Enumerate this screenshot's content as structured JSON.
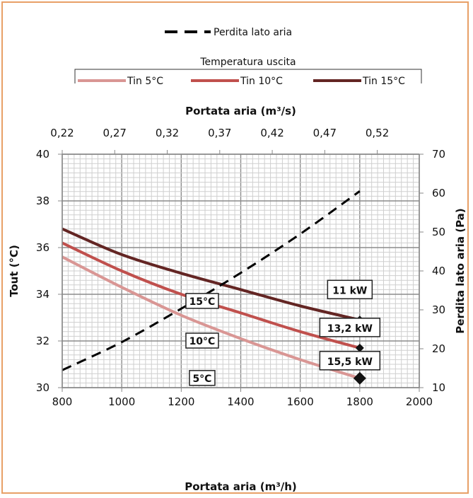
{
  "chart_data": {
    "type": "line",
    "xlabel": "Portata aria (m³/h)",
    "x2label": "Portata aria (m³/s)",
    "ylabel": "Tout (°C)",
    "y2label": "Perdita lato aria (Pa)",
    "xlim": [
      800,
      2000
    ],
    "x_ticks": [
      "800",
      "1000",
      "1200",
      "1400",
      "1600",
      "1800",
      "2000"
    ],
    "x2lim": [
      0.22,
      0.56
    ],
    "x2_ticks": [
      "0,22",
      "0,27",
      "0,32",
      "0,37",
      "0,42",
      "0,47",
      "0,52"
    ],
    "ylim": [
      30,
      40
    ],
    "y_ticks": [
      "30",
      "32",
      "34",
      "36",
      "38",
      "40"
    ],
    "y2lim": [
      10,
      70
    ],
    "y2_ticks": [
      "10",
      "20",
      "30",
      "40",
      "50",
      "60",
      "70"
    ],
    "grid": true,
    "legend_title": "Temperatura uscita",
    "series": [
      {
        "name": "Tin 5°C",
        "color": "#d99694",
        "x": [
          800,
          1000,
          1200,
          1400,
          1600,
          1800
        ],
        "y": [
          35.6,
          34.3,
          33.1,
          32.1,
          31.2,
          30.4
        ]
      },
      {
        "name": "Tin 10°C",
        "color": "#c0504d",
        "x": [
          800,
          1000,
          1200,
          1400,
          1600,
          1800
        ],
        "y": [
          36.2,
          35.0,
          34.0,
          33.2,
          32.4,
          31.7
        ]
      },
      {
        "name": "Tin 15°C",
        "color": "#632523",
        "x": [
          800,
          1000,
          1200,
          1400,
          1600,
          1800
        ],
        "y": [
          36.8,
          35.7,
          34.9,
          34.2,
          33.5,
          32.9
        ]
      },
      {
        "name": "Perdita lato aria",
        "color": "#000000",
        "axis": "right",
        "dashed": true,
        "x": [
          800,
          1000,
          1200,
          1400,
          1600,
          1800
        ],
        "y": [
          14.5,
          21.7,
          30.3,
          39.5,
          49.5,
          60.5
        ]
      }
    ],
    "annotations": {
      "curve_labels": [
        {
          "text": "15°C",
          "x": 1230,
          "y": 33.7
        },
        {
          "text": "10°C",
          "x": 1230,
          "y": 32.0
        },
        {
          "text": "5°C",
          "x": 1230,
          "y": 30.4
        }
      ],
      "power_markers": [
        {
          "text": "11 kW",
          "x": 1800,
          "y": 32.9
        },
        {
          "text": "13,2 kW",
          "x": 1800,
          "y": 31.7
        },
        {
          "text": "15,5 kW",
          "x": 1800,
          "y": 30.4
        }
      ]
    }
  }
}
